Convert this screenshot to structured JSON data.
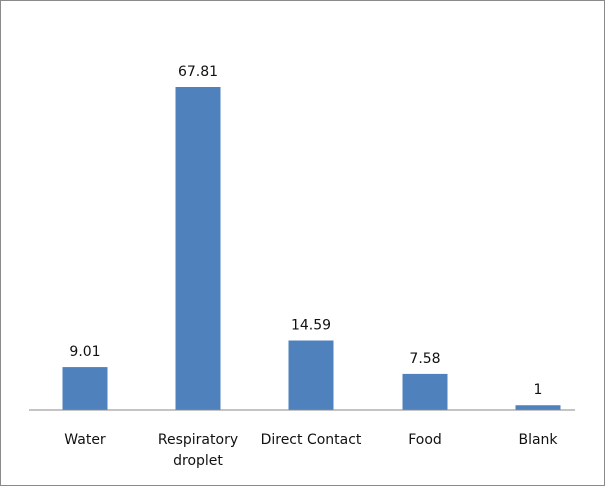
{
  "chart_data": {
    "type": "bar",
    "categories": [
      [
        "Water"
      ],
      [
        "Respiratory",
        "droplet"
      ],
      [
        "Direct Contact"
      ],
      [
        "Food"
      ],
      [
        "Blank"
      ]
    ],
    "values": [
      9.01,
      67.81,
      14.59,
      7.58,
      1
    ],
    "value_labels": [
      "9.01",
      "67.81",
      "14.59",
      "7.58",
      "1"
    ],
    "bar_color": "#4f81bd",
    "axis_color": "#8a8a8a",
    "grid": false,
    "legend": "none"
  }
}
